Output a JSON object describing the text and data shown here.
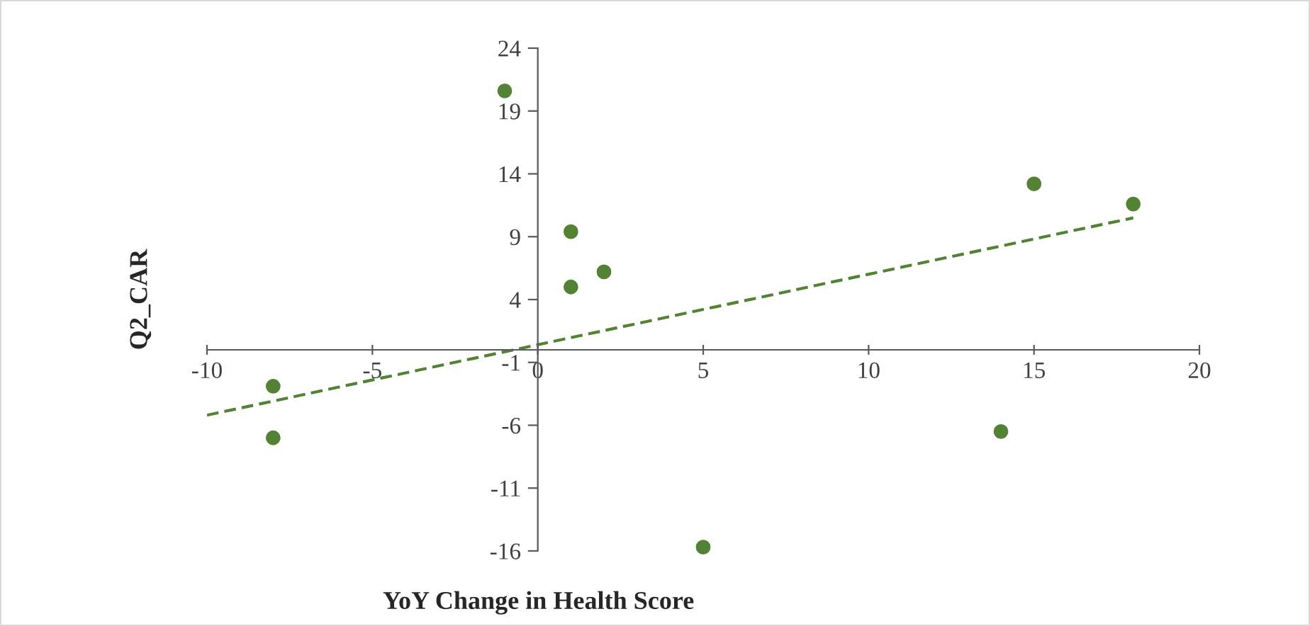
{
  "chart_data": {
    "type": "scatter",
    "xlabel": "YoY Change in Health Score",
    "ylabel": "Q2_CAR",
    "xlim": [
      -10,
      20
    ],
    "xticks": [
      -10,
      -5,
      0,
      5,
      10,
      15,
      20
    ],
    "ylim": [
      -16,
      24
    ],
    "yticks": [
      -16,
      -11,
      -6,
      -1,
      4,
      9,
      14,
      19,
      24
    ],
    "grid": false,
    "legend": false,
    "series": [
      {
        "color": "#548235",
        "marker": "circle",
        "x": [
          -1,
          1,
          1,
          2,
          -8,
          -8,
          5,
          14,
          15,
          18
        ],
        "values": [
          20.6,
          9.4,
          5.0,
          6.2,
          -2.9,
          -7.0,
          -15.7,
          -6.5,
          13.2,
          11.6
        ]
      },
      {
        "type": "line",
        "color": "#548235",
        "line_style": "dashed",
        "marker": "none",
        "x": [
          -10,
          18
        ],
        "values": [
          -5.2,
          10.5
        ]
      }
    ]
  }
}
